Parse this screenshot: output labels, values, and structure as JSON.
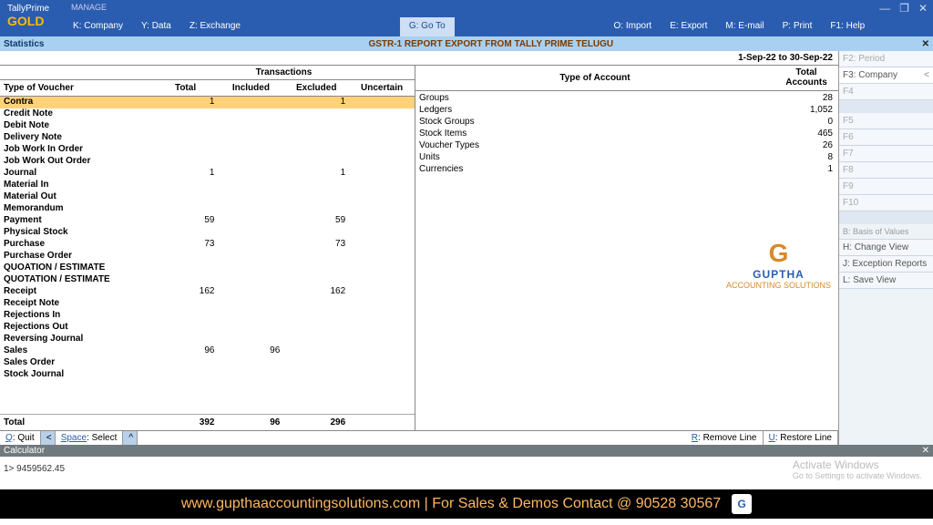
{
  "app": {
    "name": "TallyPrime",
    "edition": "GOLD",
    "manage": "MANAGE"
  },
  "menu": {
    "company": "K: Company",
    "data": "Y: Data",
    "exchange": "Z: Exchange",
    "goto": "G: Go To",
    "import": "O: Import",
    "export": "E: Export",
    "email": "M: E-mail",
    "print": "P: Print",
    "help": "F1: Help"
  },
  "win": {
    "min": "—",
    "max": "❐",
    "close": "✕"
  },
  "stats": {
    "label": "Statistics",
    "title": "GSTR-1 REPORT EXPORT FROM TALLY PRIME TELUGU",
    "close": "✕"
  },
  "period": "1-Sep-22 to 30-Sep-22",
  "headers": {
    "vtype": "Type of Voucher",
    "trans": "Transactions",
    "total": "Total",
    "inc": "Included",
    "exc": "Excluded",
    "unc": "Uncertain",
    "acct": "Type of Account",
    "tacct": "Total Accounts"
  },
  "vouchers": [
    {
      "name": "Contra",
      "total": "1",
      "inc": "",
      "exc": "1",
      "unc": "",
      "hl": true
    },
    {
      "name": "Credit Note"
    },
    {
      "name": "Debit Note"
    },
    {
      "name": "Delivery Note"
    },
    {
      "name": "Job Work In Order"
    },
    {
      "name": "Job Work Out Order"
    },
    {
      "name": "Journal",
      "total": "1",
      "exc": "1"
    },
    {
      "name": "Material In"
    },
    {
      "name": "Material Out"
    },
    {
      "name": "Memorandum"
    },
    {
      "name": "Payment",
      "total": "59",
      "exc": "59"
    },
    {
      "name": "Physical Stock"
    },
    {
      "name": "Purchase",
      "total": "73",
      "exc": "73"
    },
    {
      "name": "Purchase Order"
    },
    {
      "name": "QUOATION / ESTIMATE"
    },
    {
      "name": "QUOTATION / ESTIMATE"
    },
    {
      "name": "Receipt",
      "total": "162",
      "exc": "162"
    },
    {
      "name": "Receipt Note"
    },
    {
      "name": "Rejections In"
    },
    {
      "name": "Rejections Out"
    },
    {
      "name": "Reversing Journal"
    },
    {
      "name": "Sales",
      "total": "96",
      "inc": "96"
    },
    {
      "name": "Sales Order"
    },
    {
      "name": "Stock Journal"
    }
  ],
  "vtotal": {
    "label": "Total",
    "total": "392",
    "inc": "96",
    "exc": "296",
    "unc": ""
  },
  "accounts": [
    {
      "name": "Groups",
      "val": "28"
    },
    {
      "name": "Ledgers",
      "val": "1,052"
    },
    {
      "name": "Stock Groups",
      "val": "0"
    },
    {
      "name": "Stock Items",
      "val": "465"
    },
    {
      "name": "Voucher Types",
      "val": "26"
    },
    {
      "name": "Units",
      "val": "8"
    },
    {
      "name": "Currencies",
      "val": "1"
    }
  ],
  "sidebar": {
    "f2": "F2: Period",
    "f3": "F3: Company",
    "f4": "F4",
    "f5": "F5",
    "f6": "F6",
    "f7": "F7",
    "f8": "F8",
    "f9": "F9",
    "f10": "F10",
    "basis": "B: Basis of Values",
    "change": "H: Change View",
    "exception": "J: Exception Reports",
    "save": "L: Save View"
  },
  "bottom": {
    "quit": "Q: Quit",
    "space": "Space: Select",
    "remove": "R: Remove Line",
    "restore": "U: Restore Line"
  },
  "calc": {
    "label": "Calculator",
    "close": "✕",
    "line1": "1>  9459562.45"
  },
  "activate": {
    "t": "Activate Windows",
    "s": "Go to Settings to activate Windows."
  },
  "footer": "www.gupthaaccountingsolutions.com | For Sales & Demos Contact @ 90528 30567",
  "logo": {
    "g": "G",
    "brand": "GUPTHA",
    "sub": "ACCOUNTING SOLUTIONS"
  }
}
